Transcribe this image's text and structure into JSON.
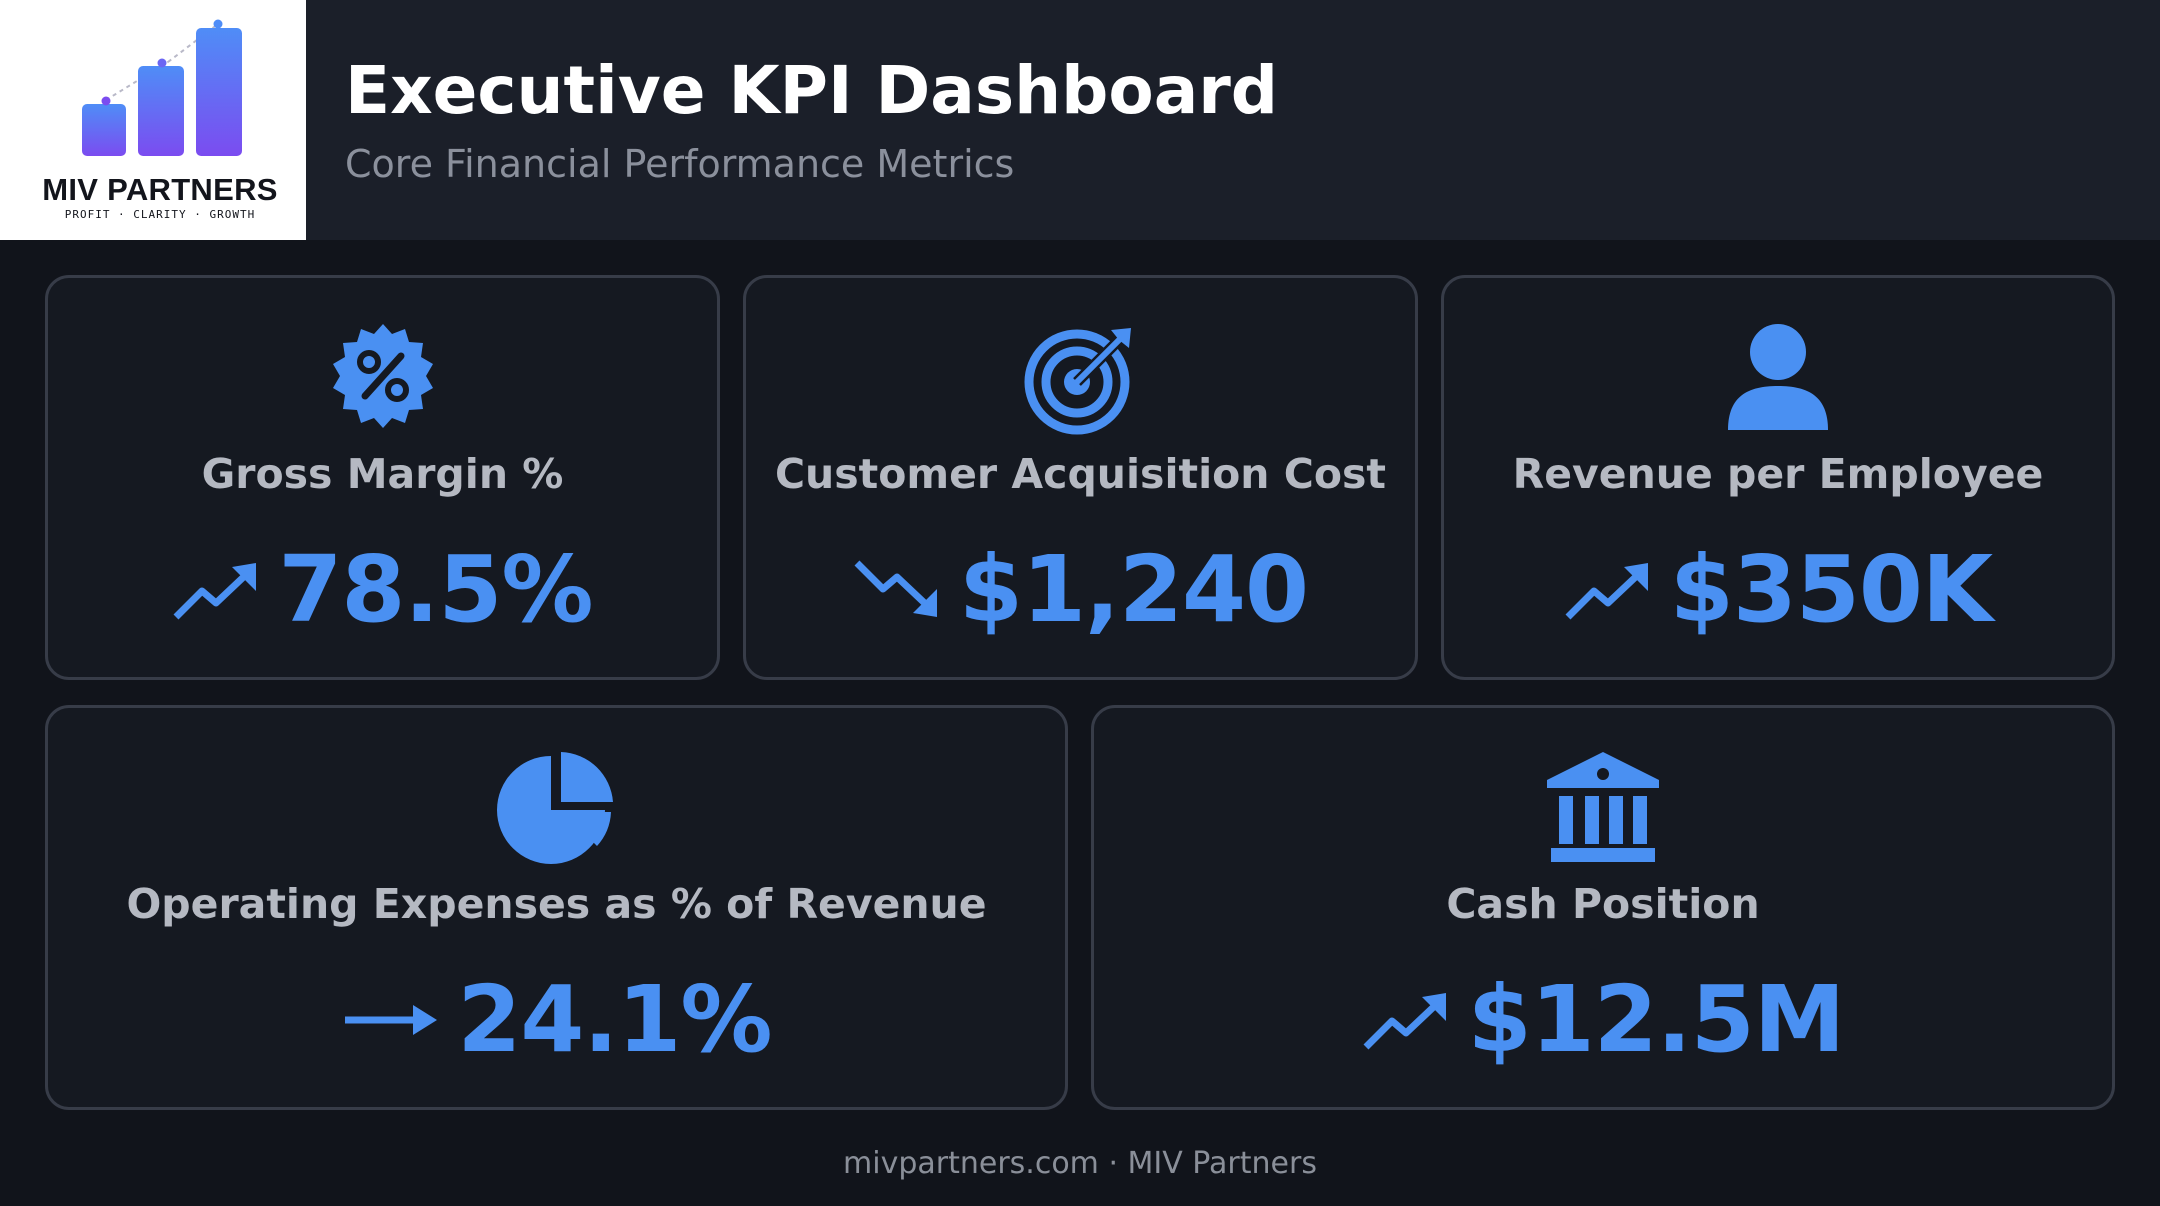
{
  "brand": {
    "name": "MIV PARTNERS",
    "tagline": "PROFIT · CLARITY · GROWTH",
    "logo_icon": "bar-chart-growth-icon"
  },
  "header": {
    "title": "Executive KPI Dashboard",
    "subtitle": "Core Financial Performance Metrics"
  },
  "colors": {
    "background": "#11141b",
    "header_bg": "#1b1f29",
    "accent": "#4a90f2",
    "label": "#b5b9c2",
    "card_border": "#373c48"
  },
  "kpis": [
    {
      "label": "Gross Margin %",
      "value": "78.5%",
      "trend": "up",
      "icon": "percent-badge-icon"
    },
    {
      "label": "Customer Acquisition Cost",
      "value": "$1,240",
      "trend": "down",
      "icon": "target-icon"
    },
    {
      "label": "Revenue per Employee",
      "value": "$350K",
      "trend": "up",
      "icon": "user-icon"
    },
    {
      "label": "Operating Expenses as % of Revenue",
      "value": "24.1%",
      "trend": "flat",
      "icon": "pie-chart-icon"
    },
    {
      "label": "Cash Position",
      "value": "$12.5M",
      "trend": "up",
      "icon": "bank-icon"
    }
  ],
  "footer": {
    "text": "mivpartners.com · MIV Partners"
  }
}
